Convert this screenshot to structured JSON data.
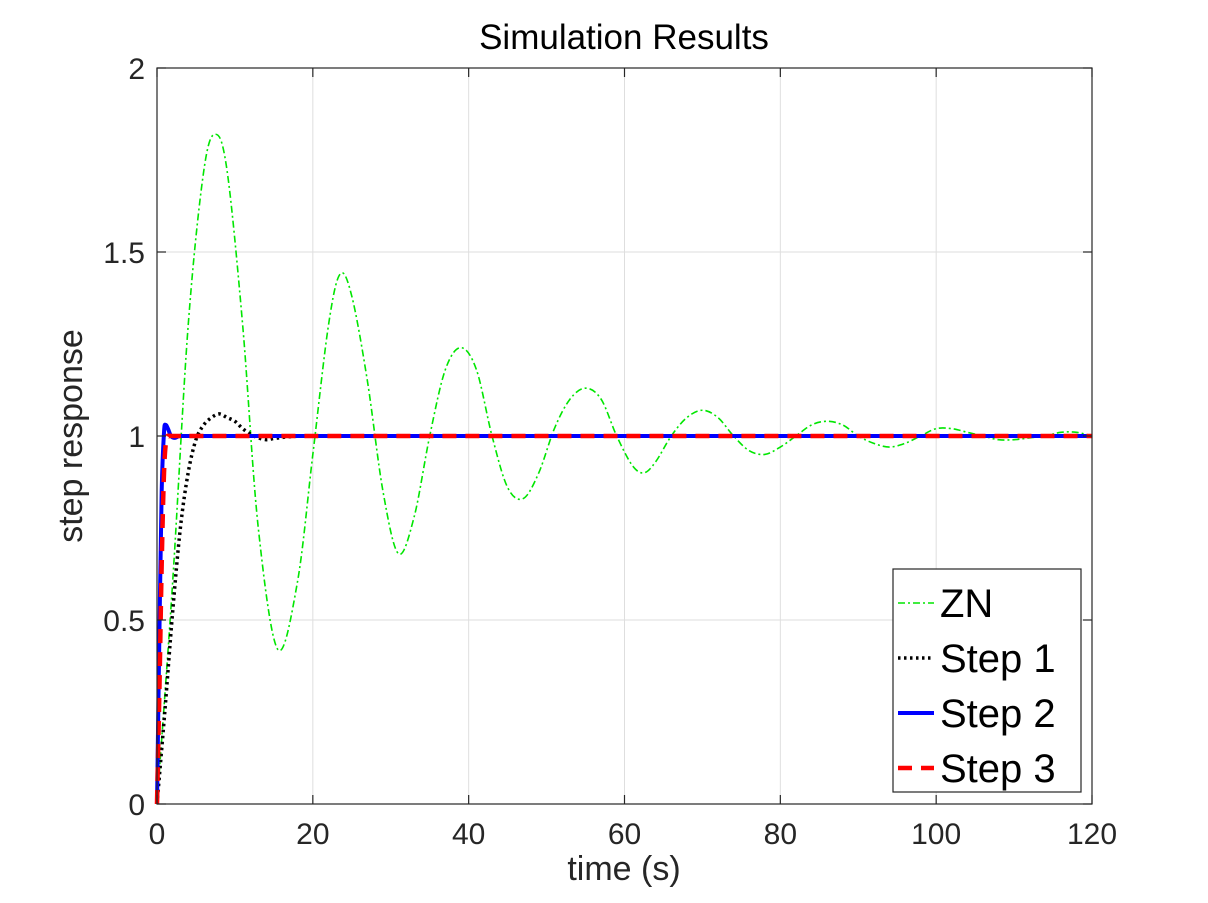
{
  "chart_data": {
    "type": "line",
    "title": "Simulation Results",
    "xlabel": "time (s)",
    "ylabel": "step response",
    "xlim": [
      0,
      120
    ],
    "ylim": [
      0,
      2
    ],
    "xticks": [
      0,
      20,
      40,
      60,
      80,
      100,
      120
    ],
    "yticks": [
      0,
      0.5,
      1,
      1.5,
      2
    ],
    "xtick_labels": [
      "0",
      "20",
      "40",
      "60",
      "80",
      "100",
      "120"
    ],
    "ytick_labels": [
      "0",
      "0.5",
      "1",
      "1.5",
      "2"
    ],
    "grid": true,
    "legend_position": "lower-right",
    "series": [
      {
        "name": "ZN",
        "color": "#00e600",
        "style": "dash-dot",
        "x": [
          0,
          2,
          4,
          6,
          7.5,
          9,
          11,
          13,
          15.5,
          18,
          20,
          22,
          23.5,
          25,
          27,
          29,
          31,
          33,
          35,
          37,
          39,
          41,
          43,
          45,
          47,
          49,
          51,
          53,
          55,
          57,
          59,
          61,
          62.5,
          64,
          66,
          68,
          70,
          72,
          74,
          76,
          78,
          80,
          82,
          84,
          86,
          88,
          90,
          92,
          94,
          96,
          98,
          100,
          102,
          104,
          106,
          108,
          110,
          112,
          114,
          116,
          118,
          120
        ],
        "y": [
          0,
          0.6,
          1.3,
          1.72,
          1.82,
          1.72,
          1.3,
          0.75,
          0.42,
          0.6,
          0.95,
          1.3,
          1.44,
          1.38,
          1.15,
          0.85,
          0.68,
          0.78,
          1.0,
          1.18,
          1.24,
          1.18,
          1.0,
          0.86,
          0.83,
          0.9,
          1.02,
          1.1,
          1.13,
          1.1,
          1.0,
          0.92,
          0.9,
          0.93,
          1.0,
          1.05,
          1.07,
          1.05,
          1.0,
          0.96,
          0.95,
          0.97,
          1.0,
          1.03,
          1.04,
          1.03,
          1.0,
          0.98,
          0.97,
          0.98,
          1.0,
          1.02,
          1.02,
          1.01,
          1.0,
          0.99,
          0.99,
          0.995,
          1.0,
          1.01,
          1.01,
          1.0
        ]
      },
      {
        "name": "Step 1",
        "color": "#000000",
        "style": "dotted",
        "x": [
          0,
          1,
          2,
          3,
          4,
          5,
          6,
          7,
          8,
          9,
          10,
          11,
          12,
          13,
          14,
          15,
          17,
          20,
          30,
          60,
          90,
          120
        ],
        "y": [
          0,
          0.25,
          0.52,
          0.75,
          0.9,
          0.99,
          1.03,
          1.05,
          1.06,
          1.05,
          1.04,
          1.02,
          1.005,
          0.995,
          0.99,
          0.993,
          0.998,
          1.0,
          1.0,
          1.0,
          1.0,
          1.0
        ]
      },
      {
        "name": "Step 2",
        "color": "#0000ff",
        "style": "solid",
        "x": [
          0,
          0.3,
          0.6,
          0.9,
          1.1,
          1.4,
          1.8,
          2.3,
          3,
          5,
          20,
          60,
          120
        ],
        "y": [
          0,
          0.45,
          0.85,
          1.01,
          1.03,
          1.02,
          1.0,
          0.995,
          1.0,
          1.0,
          1.0,
          1.0,
          1.0
        ]
      },
      {
        "name": "Step 3",
        "color": "#ff0000",
        "style": "dashed",
        "x": [
          0,
          0.3,
          0.6,
          0.9,
          1.2,
          1.6,
          2,
          3,
          10,
          60,
          120
        ],
        "y": [
          0,
          0.3,
          0.65,
          0.9,
          0.99,
          1.0,
          1.0,
          1.0,
          1.0,
          1.0,
          1.0
        ]
      }
    ]
  }
}
